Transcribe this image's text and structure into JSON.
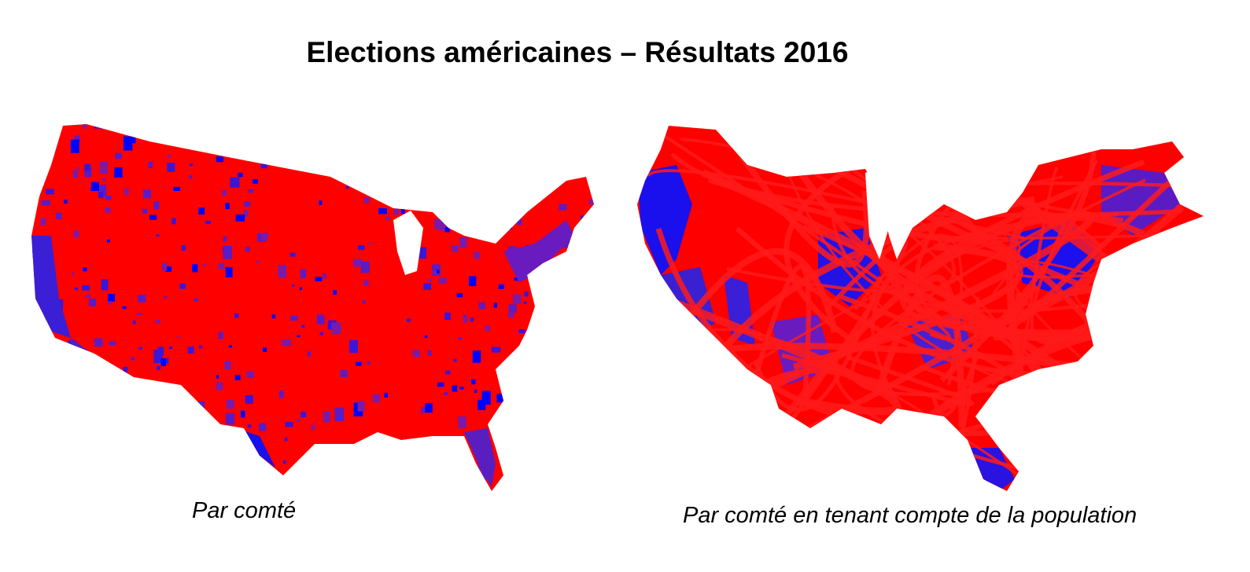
{
  "title": "Elections américaines – Résultats 2016",
  "maps": {
    "left": {
      "caption": "Par comté"
    },
    "right": {
      "caption": "Par comté en tenant compte de la population"
    }
  },
  "colors": {
    "republican": "#ff0000",
    "democrat": "#0000ff",
    "mixed": "#6a1bbf",
    "background": "#ffffff"
  }
}
